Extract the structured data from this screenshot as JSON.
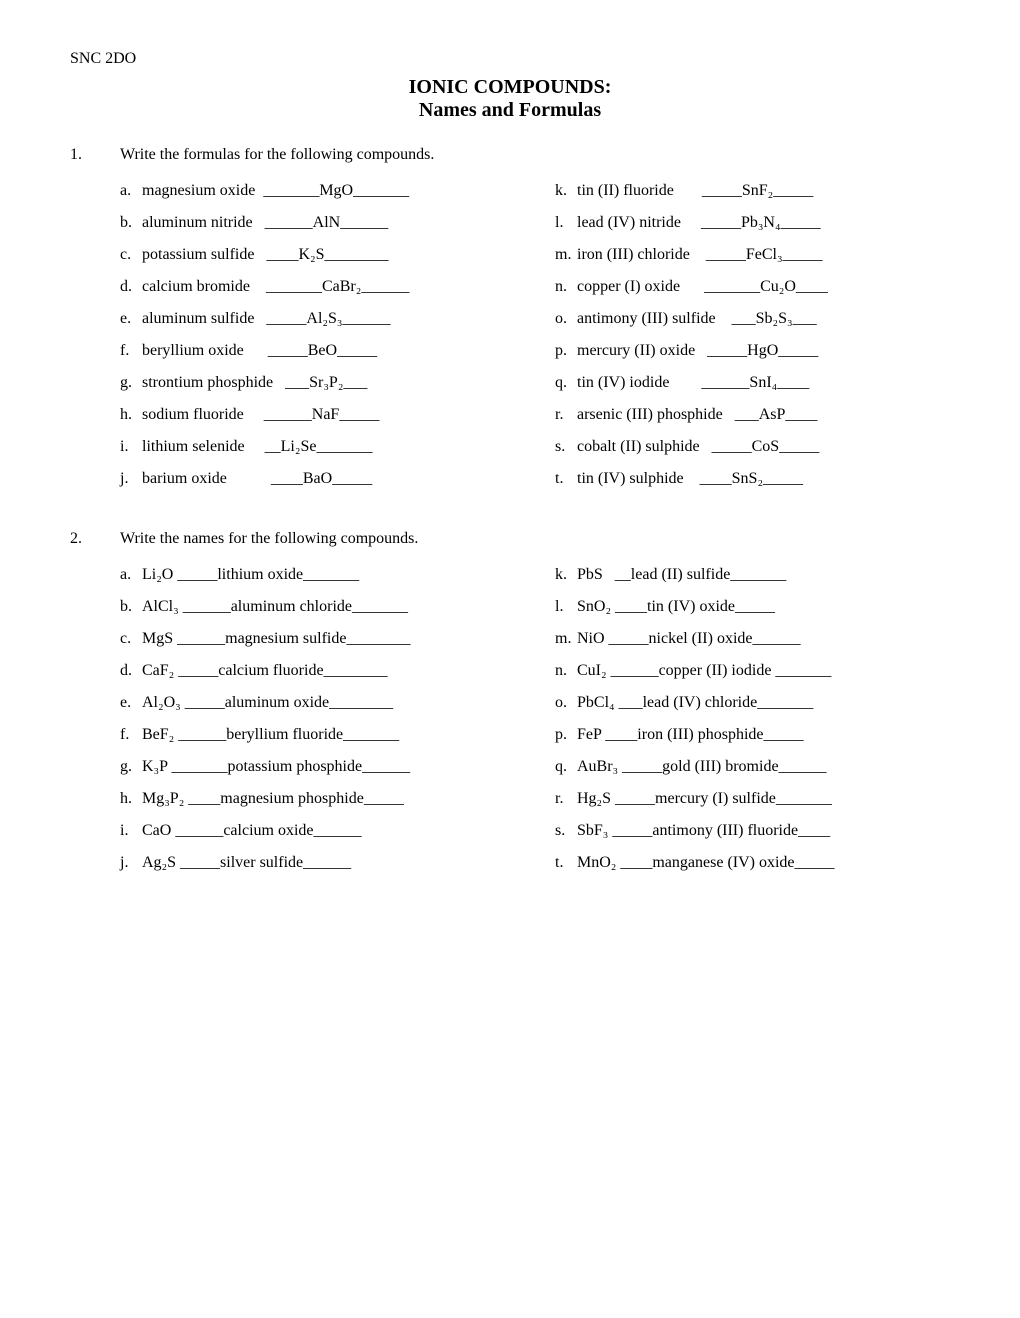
{
  "course": "SNC 2DO",
  "title1": "IONIC COMPOUNDS:",
  "title2": "Names and Formulas",
  "q1": {
    "num": "1.",
    "prompt": "Write the formulas for the following compounds.",
    "left": [
      {
        "l": "a.",
        "name": "magnesium oxide",
        "pre": "  _______",
        "ans": "MgO",
        "post": "_______"
      },
      {
        "l": "b.",
        "name": "aluminum nitride",
        "pre": "   ______",
        "ans": "AlN",
        "post": "______"
      },
      {
        "l": "c.",
        "name": "potassium sulfide",
        "pre": "   ____",
        "ans": "K₂S",
        "post": "________"
      },
      {
        "l": "d.",
        "name": "calcium bromide",
        "pre": "    _______",
        "ans": "CaBr₂",
        "post": "______"
      },
      {
        "l": "e.",
        "name": "aluminum sulfide",
        "pre": "   _____",
        "ans": "Al₂S₃",
        "post": "______"
      },
      {
        "l": "f.",
        "name": "beryllium oxide",
        "pre": "      _____",
        "ans": "BeO",
        "post": "_____"
      },
      {
        "l": "g.",
        "name": "strontium phosphide",
        "pre": "   ___",
        "ans": "Sr₃P₂",
        "post": "___"
      },
      {
        "l": "h.",
        "name": "sodium fluoride",
        "pre": "     ______",
        "ans": "NaF",
        "post": "_____"
      },
      {
        "l": "i.",
        "name": "lithium selenide",
        "pre": "     __",
        "ans": "Li₂Se",
        "post": "_______"
      },
      {
        "l": "j.",
        "name": "barium oxide",
        "pre": "           ____",
        "ans": "BaO",
        "post": "_____"
      }
    ],
    "right": [
      {
        "l": "k.",
        "name": "tin (II) fluoride",
        "pre": "       _____",
        "ans": "SnF₂",
        "post": "_____"
      },
      {
        "l": "l.",
        "name": "lead (IV) nitride",
        "pre": "     _____",
        "ans": "Pb₃N₄",
        "post": "_____"
      },
      {
        "l": "m.",
        "name": "iron (III) chloride",
        "pre": "    _____",
        "ans": "FeCl₃",
        "post": "_____"
      },
      {
        "l": "n.",
        "name": "copper (I) oxide",
        "pre": "      _______",
        "ans": "Cu₂O",
        "post": "____"
      },
      {
        "l": "o.",
        "name": "antimony (III) sulfide",
        "pre": "    ___",
        "ans": "Sb₂S₃",
        "post": "___"
      },
      {
        "l": "p.",
        "name": "mercury (II) oxide",
        "pre": "   _____",
        "ans": "HgO",
        "post": "_____"
      },
      {
        "l": "q.",
        "name": "tin (IV) iodide",
        "pre": "        ______",
        "ans": "SnI₄",
        "post": "____"
      },
      {
        "l": "r.",
        "name": "arsenic (III) phosphide",
        "pre": "   ___",
        "ans": "AsP",
        "post": "____"
      },
      {
        "l": "s.",
        "name": "cobalt (II) sulphide",
        "pre": "   _____",
        "ans": "CoS",
        "post": "_____"
      },
      {
        "l": "t.",
        "name": "tin (IV) sulphide",
        "pre": "    ____",
        "ans": "SnS₂",
        "post": "_____"
      }
    ]
  },
  "q2": {
    "num": "2.",
    "prompt": "Write the names for the following compounds.",
    "left": [
      {
        "l": "a.",
        "formula": "Li₂O",
        "pre": " _____",
        "ans": "lithium oxide",
        "post": "_______"
      },
      {
        "l": "b.",
        "formula": "AlCl₃",
        "pre": " ______",
        "ans": "aluminum chloride",
        "post": "_______"
      },
      {
        "l": "c.",
        "formula": "MgS",
        "pre": " ______",
        "ans": "magnesium sulfide",
        "post": "________"
      },
      {
        "l": "d.",
        "formula": "CaF₂",
        "pre": " _____",
        "ans": "calcium fluoride",
        "post": "________"
      },
      {
        "l": "e.",
        "formula": "Al₂O₃",
        "pre": " _____",
        "ans": "aluminum oxide",
        "post": "________"
      },
      {
        "l": "f.",
        "formula": "BeF₂",
        "pre": " ______",
        "ans": "beryllium fluoride",
        "post": "_______"
      },
      {
        "l": "g.",
        "formula": "K₃P",
        "pre": " _______",
        "ans": "potassium phosphide",
        "post": "______"
      },
      {
        "l": "h.",
        "formula": "Mg₃P₂",
        "pre": " ____",
        "ans": "magnesium phosphide",
        "post": "_____"
      },
      {
        "l": "i.",
        "formula": "CaO",
        "pre": " ______",
        "ans": "calcium oxide",
        "post": "______"
      },
      {
        "l": "j.",
        "formula": "Ag₂S",
        "pre": " _____",
        "ans": "silver sulfide",
        "post": "______"
      }
    ],
    "right": [
      {
        "l": "k.",
        "formula": "PbS",
        "pre": "   __",
        "ans": "lead (II) sulfide",
        "post": "_______"
      },
      {
        "l": "l.",
        "formula": "SnO₂",
        "pre": " ____",
        "ans": "tin (IV) oxide",
        "post": "_____"
      },
      {
        "l": "m.",
        "formula": "NiO",
        "pre": " _____",
        "ans": "nickel (II) oxide",
        "post": "______"
      },
      {
        "l": "n.",
        "formula": "CuI₂",
        "pre": " ______",
        "ans": "copper (II) iodide",
        "post": " _______"
      },
      {
        "l": "o.",
        "formula": "PbCl₄",
        "pre": " ___",
        "ans": "lead (IV) chloride",
        "post": "_______"
      },
      {
        "l": "p.",
        "formula": "FeP",
        "pre": " ____",
        "ans": "iron (III) phosphide",
        "post": "_____"
      },
      {
        "l": "q.",
        "formula": "AuBr₃",
        "pre": " _____",
        "ans": "gold (III) bromide",
        "post": "______"
      },
      {
        "l": "r.",
        "formula": "Hg₂S",
        "pre": " _____",
        "ans": "mercury (I) sulfide",
        "post": "_______"
      },
      {
        "l": "s.",
        "formula": "SbF₃",
        "pre": " _____",
        "ans": "antimony (III) fluoride",
        "post": "____"
      },
      {
        "l": "t.",
        "formula": "MnO₂",
        "pre": " ____",
        "ans": "manganese (IV) oxide",
        "post": "_____"
      }
    ]
  }
}
